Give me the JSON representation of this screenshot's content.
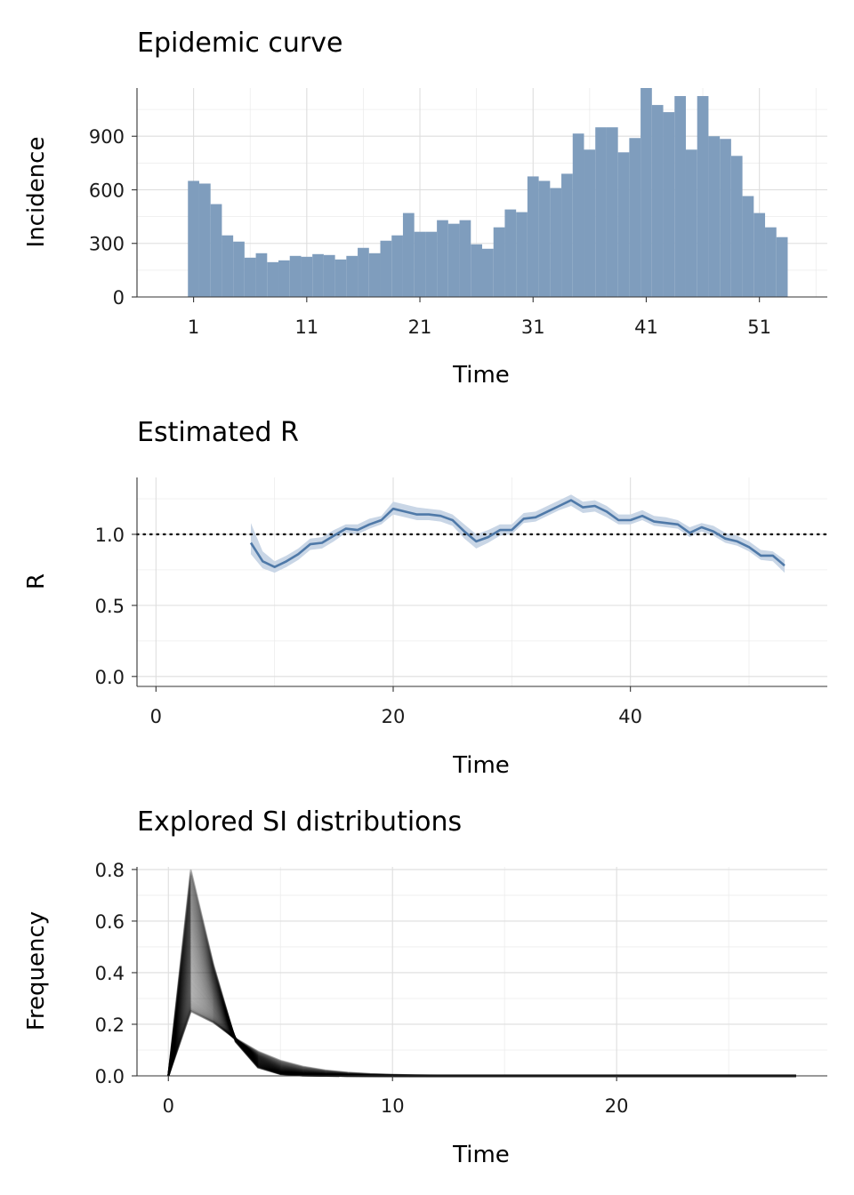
{
  "colors": {
    "bar_fill": "#7f9dbd",
    "r_line": "#4f79a8",
    "r_band": "#c9d6e6",
    "si_line": "#000000"
  },
  "chart_data": [
    {
      "type": "bar",
      "title": "Epidemic curve",
      "xlabel": "Time",
      "ylabel": "Incidence",
      "xlim": [
        -4,
        57
      ],
      "ylim": [
        0,
        1170
      ],
      "xticks": [
        1,
        11,
        21,
        31,
        41,
        51
      ],
      "yticks": [
        0,
        300,
        600,
        900
      ],
      "grid": true,
      "x": [
        1,
        2,
        3,
        4,
        5,
        6,
        7,
        8,
        9,
        10,
        11,
        12,
        13,
        14,
        15,
        16,
        17,
        18,
        19,
        20,
        21,
        22,
        23,
        24,
        25,
        26,
        27,
        28,
        29,
        30,
        31,
        32,
        33,
        34,
        35,
        36,
        37,
        38,
        39,
        40,
        41,
        42,
        43,
        44,
        45,
        46,
        47,
        48,
        49,
        50,
        51,
        52,
        53
      ],
      "values": [
        650,
        635,
        520,
        345,
        310,
        220,
        245,
        195,
        205,
        230,
        225,
        240,
        235,
        210,
        230,
        275,
        245,
        315,
        345,
        470,
        365,
        365,
        430,
        410,
        430,
        295,
        270,
        390,
        490,
        475,
        675,
        650,
        610,
        690,
        915,
        825,
        950,
        950,
        810,
        890,
        1170,
        1075,
        1035,
        1125,
        825,
        1125,
        900,
        885,
        790,
        565,
        470,
        390,
        335
      ]
    },
    {
      "type": "line",
      "title": "Estimated R",
      "xlabel": "Time",
      "ylabel": "R",
      "xlim": [
        -1.6,
        56.6
      ],
      "ylim": [
        -0.07,
        1.4
      ],
      "xticks": [
        0,
        20,
        40
      ],
      "yticks": [
        0.0,
        0.5,
        1.0
      ],
      "yticklabels": [
        "0.0",
        "0.5",
        "1.0"
      ],
      "grid": true,
      "reference_line": {
        "y": 1.0,
        "style": "dotted"
      },
      "series": [
        {
          "x": [
            8,
            9,
            10,
            11,
            12,
            13,
            14,
            15,
            16,
            17,
            18,
            19,
            20,
            21,
            22,
            23,
            24,
            25,
            26,
            27,
            28,
            29,
            30,
            31,
            32,
            33,
            34,
            35,
            36,
            37,
            38,
            39,
            40,
            41,
            42,
            43,
            44,
            45,
            46,
            47,
            48,
            49,
            50,
            51,
            52,
            53
          ],
          "mean": [
            0.94,
            0.81,
            0.77,
            0.81,
            0.86,
            0.93,
            0.94,
            0.99,
            1.04,
            1.03,
            1.07,
            1.1,
            1.18,
            1.16,
            1.14,
            1.14,
            1.13,
            1.1,
            1.02,
            0.95,
            0.98,
            1.03,
            1.03,
            1.11,
            1.12,
            1.16,
            1.2,
            1.24,
            1.19,
            1.2,
            1.16,
            1.1,
            1.1,
            1.13,
            1.09,
            1.08,
            1.07,
            1.01,
            1.05,
            1.02,
            0.97,
            0.95,
            0.91,
            0.85,
            0.85,
            0.78
          ],
          "lower": [
            0.86,
            0.76,
            0.73,
            0.77,
            0.82,
            0.89,
            0.9,
            0.95,
            1.01,
            1.0,
            1.04,
            1.07,
            1.14,
            1.12,
            1.1,
            1.1,
            1.09,
            1.06,
            0.97,
            0.9,
            0.94,
            0.99,
            1.0,
            1.08,
            1.09,
            1.13,
            1.17,
            1.2,
            1.15,
            1.16,
            1.12,
            1.07,
            1.07,
            1.1,
            1.06,
            1.05,
            1.04,
            0.98,
            1.02,
            0.99,
            0.94,
            0.92,
            0.88,
            0.82,
            0.81,
            0.73
          ],
          "upper": [
            1.08,
            0.88,
            0.81,
            0.85,
            0.9,
            0.97,
            0.98,
            1.03,
            1.07,
            1.07,
            1.11,
            1.13,
            1.23,
            1.21,
            1.19,
            1.18,
            1.17,
            1.14,
            1.07,
            1.0,
            1.03,
            1.07,
            1.07,
            1.15,
            1.16,
            1.2,
            1.24,
            1.28,
            1.23,
            1.24,
            1.2,
            1.14,
            1.14,
            1.17,
            1.13,
            1.12,
            1.1,
            1.05,
            1.08,
            1.06,
            1.01,
            0.99,
            0.95,
            0.89,
            0.88,
            0.82
          ]
        }
      ]
    },
    {
      "type": "line",
      "title": "Explored SI distributions",
      "xlabel": "Time",
      "ylabel": "Frequency",
      "xlim": [
        -1.4,
        29.4
      ],
      "ylim": [
        0,
        0.81
      ],
      "xticks": [
        0,
        10,
        20
      ],
      "yticks": [
        0.0,
        0.2,
        0.4,
        0.6,
        0.8
      ],
      "yticklabels": [
        "0.0",
        "0.2",
        "0.4",
        "0.6",
        "0.8"
      ],
      "grid": true,
      "x_range": [
        0,
        28
      ],
      "peak_at_x": 1,
      "peak_range": [
        0.25,
        0.8
      ],
      "series_count": 120
    }
  ]
}
